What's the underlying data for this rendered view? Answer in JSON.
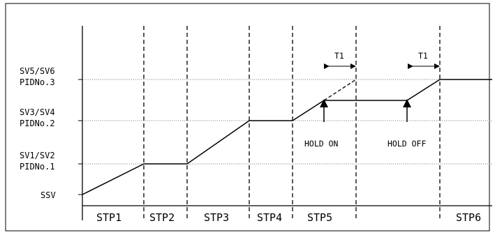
{
  "diagram": {
    "y_levels": [
      {
        "id": "ssv",
        "line1": "SSV",
        "line2": ""
      },
      {
        "id": "sv12",
        "line1": "SV1/SV2",
        "line2": "PIDNo.1"
      },
      {
        "id": "sv34",
        "line1": "SV3/SV4",
        "line2": "PIDNo.2"
      },
      {
        "id": "sv56",
        "line1": "SV5/SV6",
        "line2": "PIDNo.3"
      }
    ],
    "steps": [
      "STP1",
      "STP2",
      "STP3",
      "STP4",
      "STP5",
      "STP6"
    ],
    "annotations": {
      "hold_on": "HOLD ON",
      "hold_off": "HOLD OFF",
      "t1_left": "T1",
      "t1_right": "T1"
    }
  }
}
